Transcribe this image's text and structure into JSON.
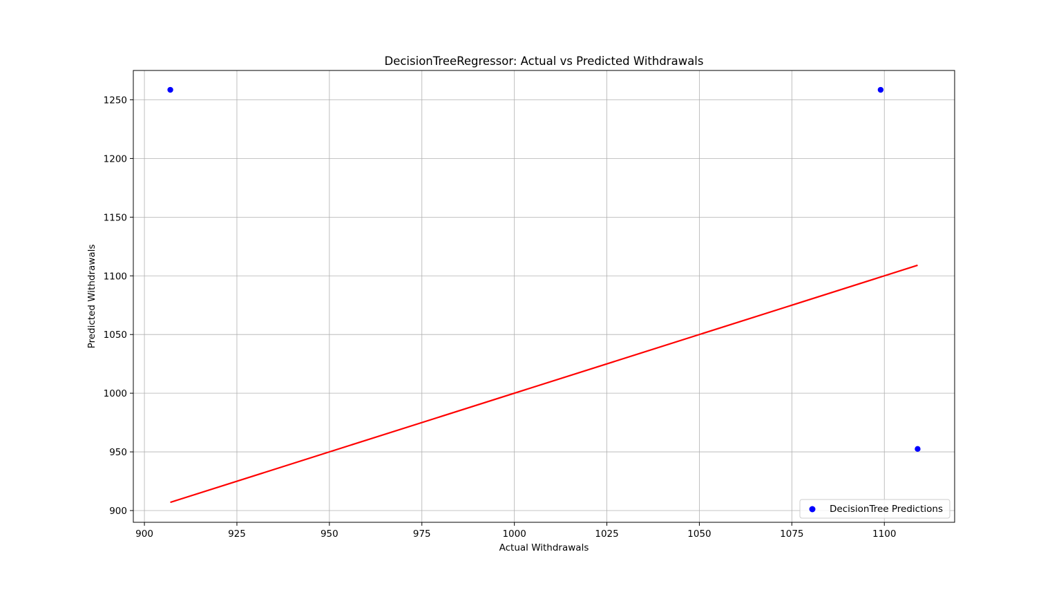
{
  "chart_data": {
    "type": "scatter",
    "title": "DecisionTreeRegressor: Actual vs Predicted Withdrawals",
    "xlabel": "Actual Withdrawals",
    "ylabel": "Predicted Withdrawals",
    "xlim": [
      897,
      1119
    ],
    "ylim": [
      890,
      1275
    ],
    "xticks": [
      900,
      925,
      950,
      975,
      1000,
      1025,
      1050,
      1075,
      1100
    ],
    "yticks": [
      900,
      950,
      1000,
      1050,
      1100,
      1150,
      1200,
      1250
    ],
    "grid": true,
    "legend_position": "lower right",
    "series": [
      {
        "name": "DecisionTree Predictions",
        "kind": "scatter",
        "color": "#0000ff",
        "points": [
          {
            "x": 907,
            "y": 1258.5
          },
          {
            "x": 1099,
            "y": 1258.5
          },
          {
            "x": 1109,
            "y": 952.5
          }
        ]
      },
      {
        "kind": "line",
        "color": "#ff0000",
        "points": [
          {
            "x": 907,
            "y": 907
          },
          {
            "x": 1109,
            "y": 1109
          }
        ]
      }
    ]
  }
}
